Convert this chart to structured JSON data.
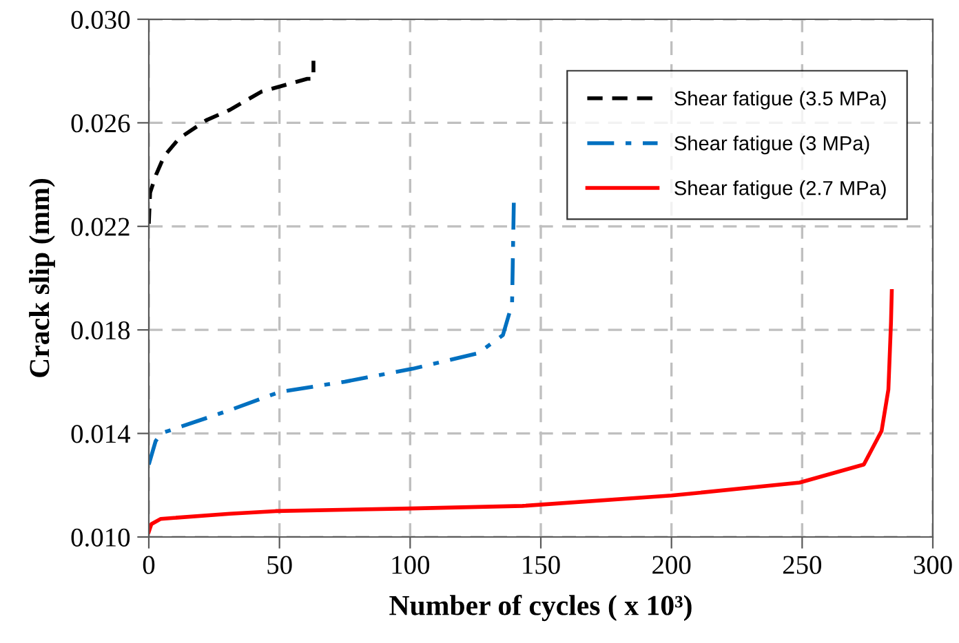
{
  "chart_data": {
    "type": "line",
    "xlabel": "Number of cycles ( x 10³)",
    "ylabel": "Crack slip (mm)",
    "xlim": [
      0,
      300
    ],
    "xticks": [
      0,
      50,
      100,
      150,
      200,
      250,
      300
    ],
    "ylim": [
      0.01,
      0.03
    ],
    "yticks": [
      {
        "value": 0.01,
        "label": "0.010"
      },
      {
        "value": 0.014,
        "label": "0.014"
      },
      {
        "value": 0.018,
        "label": "0.018"
      },
      {
        "value": 0.022,
        "label": "0.022"
      },
      {
        "value": 0.026,
        "label": "0.026"
      },
      {
        "value": 0.03,
        "label": "0.030"
      }
    ],
    "grid": true,
    "legend": "top right",
    "marker": "none",
    "series": [
      {
        "name": "Shear fatigue (3.5 MPa)",
        "color": "#000000",
        "line_style": "dashed",
        "x": [
          0,
          0.5,
          2.8,
          5.8,
          11.6,
          22,
          31,
          43,
          60.6,
          63,
          63
        ],
        "values": [
          0.0221,
          0.0233,
          0.024,
          0.0247,
          0.0254,
          0.0261,
          0.0265,
          0.0272,
          0.0277,
          0.0277,
          0.0284
        ]
      },
      {
        "name": "Shear fatigue (3 MPa)",
        "color": "#0070c0",
        "line_style": "dashdot",
        "x": [
          0,
          2.6,
          4.6,
          31,
          50,
          75,
          101,
          126,
          135.5,
          139,
          139.7
        ],
        "values": [
          0.0128,
          0.0137,
          0.014,
          0.0149,
          0.0156,
          0.016,
          0.0165,
          0.0171,
          0.0178,
          0.019,
          0.0231
        ]
      },
      {
        "name": "Shear fatigue (2.7 MPa)",
        "color": "#ff0000",
        "line_style": "solid",
        "x": [
          0,
          1,
          4.6,
          31,
          48.5,
          100,
          143,
          200,
          249,
          273.6,
          280.4,
          283,
          284,
          284.3
        ],
        "values": [
          0.0102,
          0.0105,
          0.0107,
          0.0109,
          0.011,
          0.0111,
          0.0112,
          0.0116,
          0.0121,
          0.0128,
          0.0141,
          0.0157,
          0.0183,
          0.0195
        ]
      }
    ]
  }
}
